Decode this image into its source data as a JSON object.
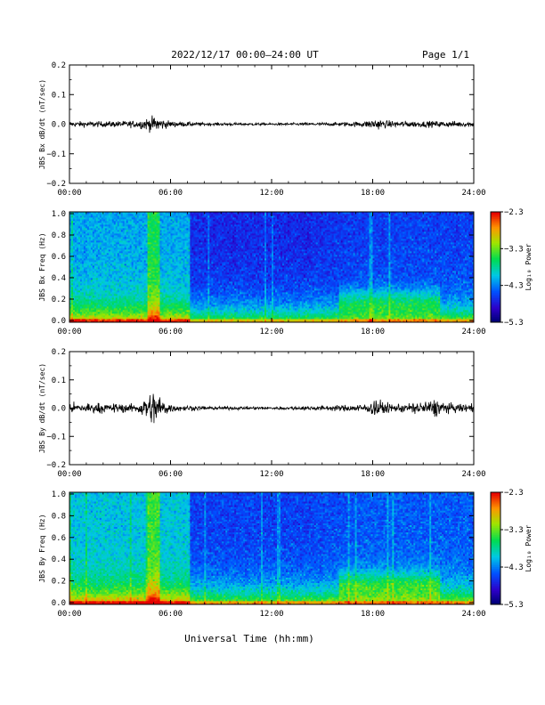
{
  "header": {
    "title": "2022/12/17  00:00–24:00 UT",
    "page": "Page 1/1"
  },
  "x_axis": {
    "label": "Universal Time (hh:mm)",
    "ticks": [
      "00:00",
      "06:00",
      "12:00",
      "18:00",
      "24:00"
    ]
  },
  "chart_data": [
    {
      "type": "line",
      "ylabel": "JBS Bx dB/dt (nT/sec)",
      "xlim": [
        0,
        24
      ],
      "ylim": [
        -0.2,
        0.2
      ],
      "yticks": [
        "0.2",
        "0.1",
        "0.0",
        "−0.1",
        "−0.2"
      ],
      "envelope": {
        "hours": [
          0,
          2,
          4,
          4.8,
          5.2,
          5.6,
          6,
          7,
          8,
          12,
          16,
          17.5,
          18.2,
          18.8,
          20,
          22,
          24
        ],
        "amplitude": [
          0.012,
          0.012,
          0.015,
          0.03,
          0.035,
          0.02,
          0.013,
          0.01,
          0.007,
          0.005,
          0.008,
          0.012,
          0.025,
          0.015,
          0.013,
          0.013,
          0.012
        ]
      }
    },
    {
      "type": "heatmap",
      "ylabel": "JBS Bx Freq (Hz)",
      "xlim": [
        0,
        24
      ],
      "ylim": [
        0.0,
        1.0
      ],
      "yticks": [
        "1.0",
        "0.8",
        "0.6",
        "0.4",
        "0.2",
        "0.0"
      ],
      "colorbar": {
        "label": "Log₁₀ Power",
        "ticks": [
          "−2.3",
          "−3.3",
          "−4.3",
          "−5.3"
        ],
        "range": [
          -5.3,
          -2.3
        ]
      }
    },
    {
      "type": "line",
      "ylabel": "JBS By dB/dt (nT/sec)",
      "xlim": [
        0,
        24
      ],
      "ylim": [
        -0.2,
        0.2
      ],
      "yticks": [
        "0.2",
        "0.1",
        "0.0",
        "−0.1",
        "−0.2"
      ],
      "envelope": {
        "hours": [
          0,
          1,
          2,
          4,
          4.7,
          5.1,
          5.5,
          6,
          6.5,
          8,
          12,
          16,
          17.8,
          18.2,
          18.8,
          20,
          21.8,
          22.5,
          24
        ],
        "amplitude": [
          0.02,
          0.025,
          0.02,
          0.02,
          0.06,
          0.08,
          0.04,
          0.02,
          0.014,
          0.008,
          0.006,
          0.012,
          0.02,
          0.05,
          0.02,
          0.02,
          0.04,
          0.02,
          0.02
        ]
      }
    },
    {
      "type": "heatmap",
      "ylabel": "JBS By Freq (Hz)",
      "xlim": [
        0,
        24
      ],
      "ylim": [
        0.0,
        1.0
      ],
      "yticks": [
        "1.0",
        "0.8",
        "0.6",
        "0.4",
        "0.2",
        "0.0"
      ],
      "colorbar": {
        "label": "Log₁₀ Power",
        "ticks": [
          "−2.3",
          "−3.3",
          "−4.3",
          "−5.3"
        ],
        "range": [
          -5.3,
          -2.3
        ]
      }
    }
  ]
}
